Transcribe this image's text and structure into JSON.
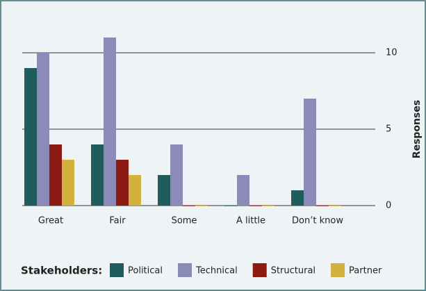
{
  "chart_data": {
    "type": "bar",
    "categories": [
      "Great",
      "Fair",
      "Some",
      "A little",
      "Don’t know"
    ],
    "series": [
      {
        "name": "Political",
        "color": "#1f5c5e",
        "values": [
          9,
          4,
          2,
          0,
          1
        ]
      },
      {
        "name": "Technical",
        "color": "#8b8bb8",
        "values": [
          10,
          11,
          4,
          2,
          7
        ]
      },
      {
        "name": "Structural",
        "color": "#8b1a12",
        "values": [
          4,
          3,
          0,
          0,
          0
        ]
      },
      {
        "name": "Partner",
        "color": "#d4b03e",
        "values": [
          3,
          2,
          0,
          0,
          0
        ]
      }
    ],
    "ylim": [
      0,
      12
    ],
    "yticks": [
      0,
      5,
      10
    ],
    "grid": true,
    "y_axis_label": "Responses",
    "legend_title": "Stakeholders:",
    "legend_position": "bottom"
  }
}
